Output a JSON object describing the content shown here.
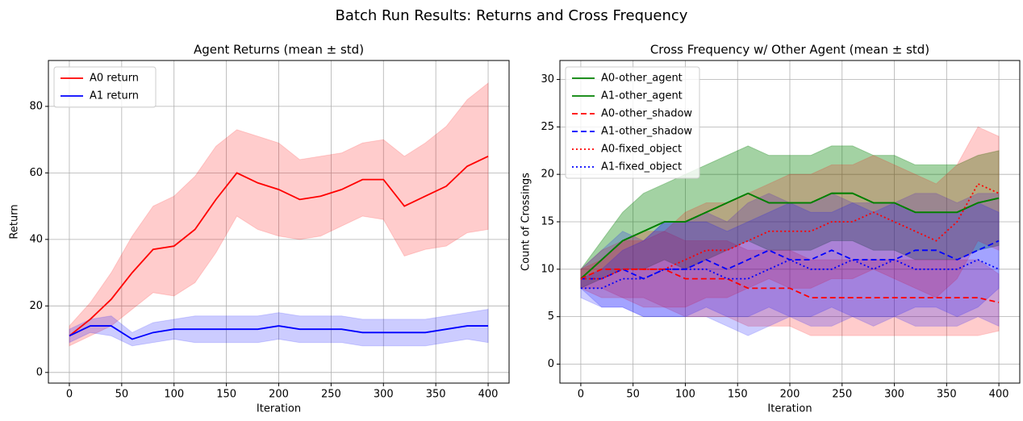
{
  "title": "Batch Run Results: Returns and Cross Frequency",
  "chart_data": [
    {
      "type": "line",
      "title": "Agent Returns (mean ± std)",
      "xlabel": "Iteration",
      "ylabel": "Return",
      "x": [
        0,
        20,
        40,
        60,
        80,
        100,
        120,
        140,
        160,
        180,
        200,
        220,
        240,
        260,
        280,
        300,
        320,
        340,
        360,
        380,
        400
      ],
      "xlim": [
        -20,
        420
      ],
      "xticks": [
        0,
        50,
        100,
        150,
        200,
        250,
        300,
        350,
        400
      ],
      "ylim": [
        -3.2,
        93.8
      ],
      "yticks": [
        0,
        20,
        40,
        60,
        80
      ],
      "grid": true,
      "legend": "upper left",
      "series": [
        {
          "name": "A0 return",
          "color": "#ff0000",
          "linestyle": "solid",
          "values": [
            11,
            16,
            22,
            30,
            37,
            38,
            43,
            52,
            60,
            57,
            55,
            52,
            53,
            55,
            58,
            58,
            50,
            53,
            56,
            62,
            65
          ],
          "std": [
            3,
            5,
            8,
            11,
            13,
            15,
            16,
            16,
            13,
            14,
            14,
            12,
            12,
            11,
            11,
            12,
            15,
            16,
            18,
            20,
            22
          ]
        },
        {
          "name": "A1 return",
          "color": "#0000ff",
          "linestyle": "solid",
          "values": [
            11,
            14,
            14,
            10,
            12,
            13,
            13,
            13,
            13,
            13,
            14,
            13,
            13,
            13,
            12,
            12,
            12,
            12,
            13,
            14,
            14
          ],
          "std": [
            2,
            2,
            3,
            2,
            3,
            3,
            4,
            4,
            4,
            4,
            4,
            4,
            4,
            4,
            4,
            4,
            4,
            4,
            4,
            4,
            5
          ]
        }
      ]
    },
    {
      "type": "line",
      "title": "Cross Frequency w/ Other Agent (mean ± std)",
      "xlabel": "Iteration",
      "ylabel": "Count of Crossings",
      "x": [
        0,
        20,
        40,
        60,
        80,
        100,
        120,
        140,
        160,
        180,
        200,
        220,
        240,
        260,
        280,
        300,
        320,
        340,
        360,
        380,
        400
      ],
      "xlim": [
        -20,
        420
      ],
      "xticks": [
        0,
        50,
        100,
        150,
        200,
        250,
        300,
        350,
        400
      ],
      "ylim": [
        -2,
        32
      ],
      "yticks": [
        0,
        5,
        10,
        15,
        20,
        25,
        30
      ],
      "grid": true,
      "legend": "upper left",
      "series": [
        {
          "name": "A0-other_agent",
          "color": "#008000",
          "linestyle": "solid",
          "values": [
            9,
            11,
            13,
            14,
            15,
            15,
            16,
            17,
            18,
            17,
            17,
            17,
            18,
            18,
            17,
            17,
            16,
            16,
            16,
            17,
            17.5
          ],
          "std": [
            1,
            2,
            3,
            4,
            4,
            5,
            5,
            5,
            5,
            5,
            5,
            5,
            5,
            5,
            5,
            5,
            5,
            5,
            5,
            5,
            5
          ]
        },
        {
          "name": "A1-other_agent",
          "color": "#008000",
          "linestyle": "solid",
          "values": [
            9,
            11,
            13,
            14,
            15,
            15,
            16,
            17,
            18,
            17,
            17,
            17,
            18,
            18,
            17,
            17,
            16,
            16,
            16,
            17,
            17.5
          ],
          "std": [
            1,
            2,
            3,
            4,
            4,
            5,
            5,
            5,
            5,
            5,
            5,
            5,
            5,
            5,
            5,
            5,
            5,
            5,
            5,
            5,
            5
          ]
        },
        {
          "name": "A0-other_shadow",
          "color": "#ff0000",
          "linestyle": "dashed",
          "values": [
            9,
            10,
            10,
            10,
            10,
            9,
            9,
            9,
            8,
            8,
            8,
            7,
            7,
            7,
            7,
            7,
            7,
            7,
            7,
            7,
            6.5
          ],
          "std": [
            1,
            2,
            3,
            3,
            4,
            4,
            4,
            4,
            4,
            4,
            4,
            4,
            4,
            4,
            4,
            4,
            4,
            4,
            4,
            4,
            3
          ]
        },
        {
          "name": "A1-other_shadow",
          "color": "#0000ff",
          "linestyle": "dashed",
          "values": [
            9,
            9,
            10,
            9,
            10,
            10,
            11,
            10,
            11,
            12,
            11,
            11,
            12,
            11,
            11,
            11,
            12,
            12,
            11,
            12,
            13
          ],
          "std": [
            1,
            3,
            4,
            4,
            5,
            5,
            5,
            5,
            6,
            6,
            6,
            6,
            6,
            6,
            6,
            6,
            6,
            6,
            6,
            6,
            5
          ]
        },
        {
          "name": "A0-fixed_object",
          "color": "#ff0000",
          "linestyle": "dotted",
          "values": [
            9,
            9,
            10,
            10,
            10,
            11,
            12,
            12,
            13,
            14,
            14,
            14,
            15,
            15,
            16,
            15,
            14,
            13,
            15,
            19,
            18
          ],
          "std": [
            1,
            2,
            3,
            4,
            4,
            5,
            5,
            5,
            5,
            5,
            6,
            6,
            6,
            6,
            6,
            6,
            6,
            6,
            6,
            6,
            6
          ]
        },
        {
          "name": "A1-fixed_object",
          "color": "#0000ff",
          "linestyle": "dotted",
          "values": [
            8,
            8,
            9,
            9,
            10,
            10,
            10,
            9,
            9,
            10,
            11,
            10,
            10,
            11,
            10,
            11,
            10,
            10,
            10,
            11,
            10
          ],
          "std": [
            1,
            2,
            3,
            4,
            5,
            5,
            5,
            5,
            6,
            6,
            6,
            6,
            6,
            6,
            6,
            6,
            6,
            6,
            6,
            6,
            6
          ]
        }
      ]
    }
  ]
}
